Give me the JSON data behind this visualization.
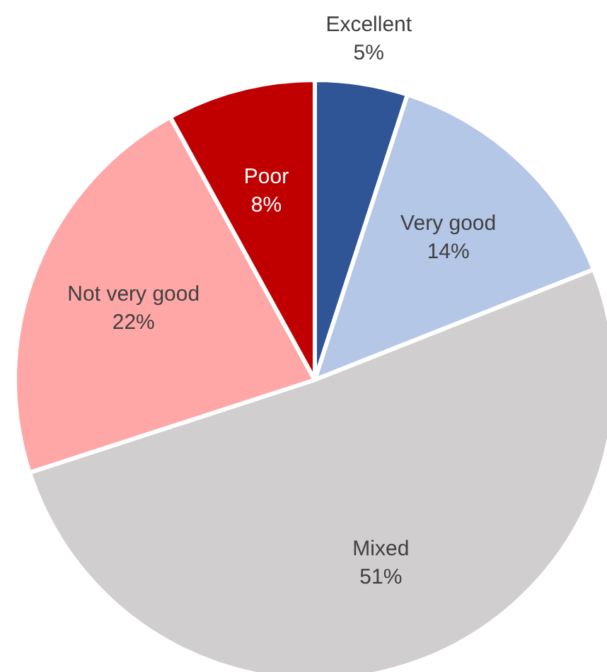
{
  "chart_data": {
    "type": "pie",
    "categories": [
      "Excellent",
      "Very good",
      "Mixed",
      "Not very good",
      "Poor"
    ],
    "values": [
      5,
      14,
      51,
      22,
      8
    ],
    "value_labels": [
      "5%",
      "14%",
      "51%",
      "22%",
      "8%"
    ],
    "colors": [
      "#2f5597",
      "#b4c7e7",
      "#d0cece",
      "#ffa7a7",
      "#c00000"
    ]
  }
}
